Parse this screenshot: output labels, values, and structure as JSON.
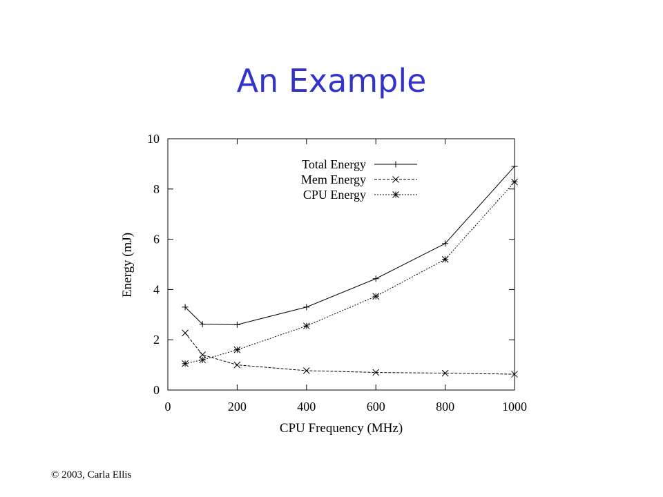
{
  "slide": {
    "title": "An Example",
    "footer": "© 2003, Carla Ellis"
  },
  "chart_data": {
    "type": "line",
    "xlabel": "CPU Frequency (MHz)",
    "ylabel": "Energy (mJ)",
    "xlim": [
      0,
      1000
    ],
    "ylim": [
      0,
      10
    ],
    "xticks": [
      0,
      200,
      400,
      600,
      800,
      1000
    ],
    "yticks": [
      0,
      2,
      4,
      6,
      8,
      10
    ],
    "legend": "top-center",
    "grid": false,
    "x": [
      50,
      100,
      200,
      400,
      600,
      800,
      1000
    ],
    "series": [
      {
        "name": "Total Energy",
        "marker": "+",
        "dash": "solid",
        "values": [
          3.3,
          2.62,
          2.6,
          3.3,
          4.43,
          5.83,
          8.9
        ]
      },
      {
        "name": "Mem Energy",
        "marker": "x",
        "dash": "dashed",
        "values": [
          2.27,
          1.4,
          1.0,
          0.77,
          0.7,
          0.67,
          0.63
        ]
      },
      {
        "name": "CPU Energy",
        "marker": "*",
        "dash": "dotted",
        "values": [
          1.05,
          1.2,
          1.6,
          2.55,
          3.73,
          5.2,
          8.28
        ]
      }
    ]
  }
}
